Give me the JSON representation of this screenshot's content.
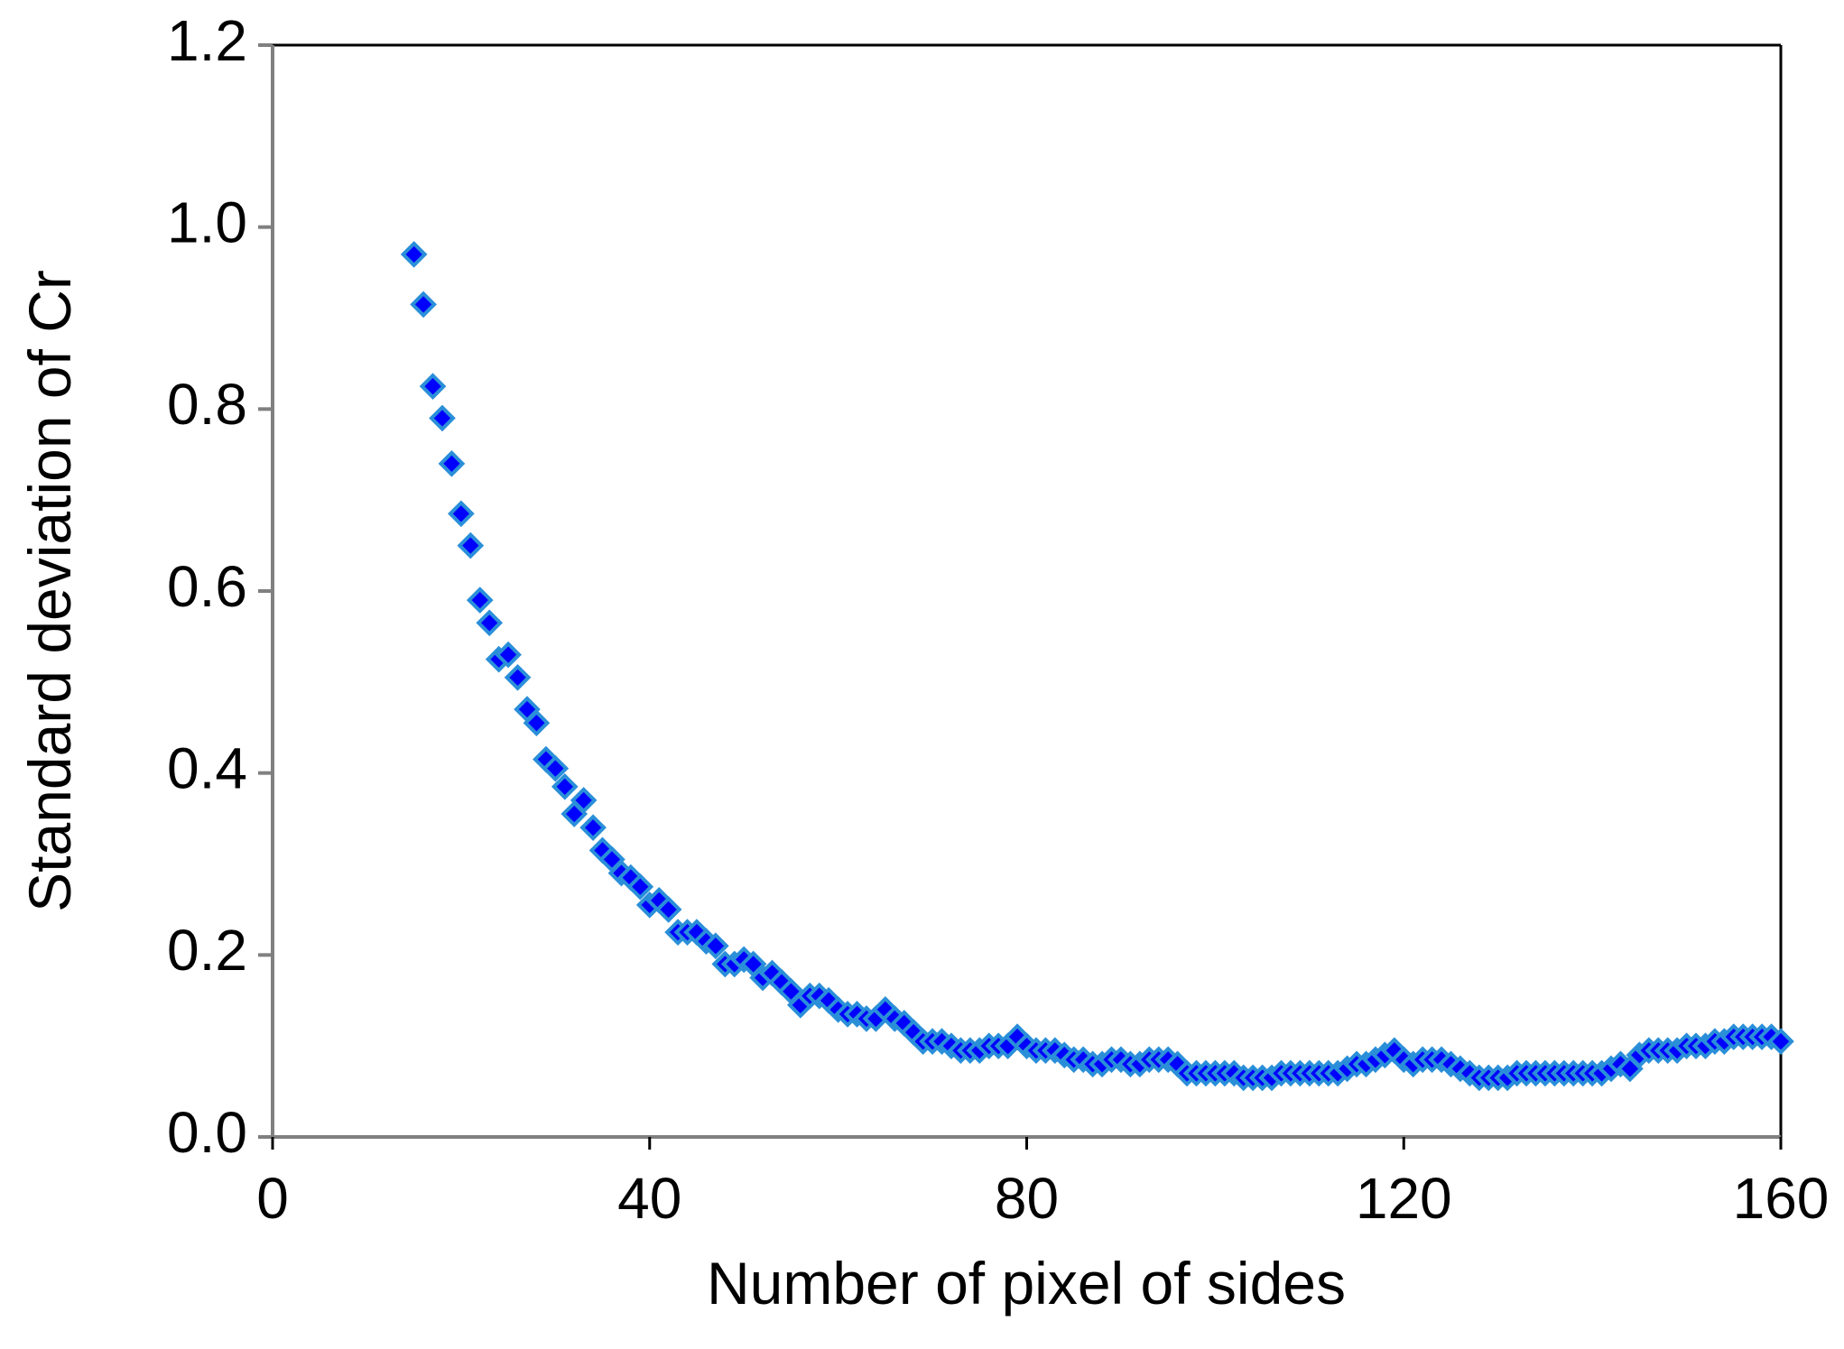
{
  "chart_data": {
    "type": "scatter",
    "x_label": "Number of pixel of sides",
    "y_label": "Standard deviation of Cr",
    "xlim": [
      0,
      160
    ],
    "ylim": [
      0,
      1.2
    ],
    "xticks": [
      0,
      40,
      80,
      120,
      160
    ],
    "yticks": [
      {
        "value": 0,
        "label": "0.0"
      },
      0.2,
      0.4,
      0.6,
      0.8,
      {
        "value": 1,
        "label": "1.0"
      },
      1.2
    ],
    "grid": false,
    "series": [
      {
        "color": "#0000ff",
        "edge_color": "#2a8fd8",
        "marker": "diamond",
        "x": [
          15,
          16,
          17,
          18,
          19,
          20,
          21,
          22,
          23,
          24,
          25,
          26,
          27,
          28,
          29,
          30,
          31,
          32,
          33,
          34,
          35,
          36,
          37,
          38,
          39,
          40,
          41,
          42,
          43,
          44,
          45,
          46,
          47,
          48,
          49,
          50,
          51,
          52,
          53,
          54,
          55,
          56,
          57,
          58,
          59,
          60,
          61,
          62,
          63,
          64,
          65,
          66,
          67,
          68,
          69,
          70,
          71,
          72,
          73,
          74,
          75,
          76,
          77,
          78,
          79,
          80,
          81,
          82,
          83,
          84,
          85,
          86,
          87,
          88,
          89,
          90,
          91,
          92,
          93,
          94,
          95,
          96,
          97,
          98,
          99,
          100,
          101,
          102,
          103,
          104,
          105,
          106,
          107,
          108,
          109,
          110,
          111,
          112,
          113,
          114,
          115,
          116,
          117,
          118,
          119,
          120,
          121,
          122,
          123,
          124,
          125,
          126,
          127,
          128,
          129,
          130,
          131,
          132,
          133,
          134,
          135,
          136,
          137,
          138,
          139,
          140,
          141,
          142,
          143,
          144,
          145,
          146,
          147,
          148,
          149,
          150,
          151,
          152,
          153,
          154,
          155,
          156,
          157,
          158,
          159,
          160
        ],
        "values": [
          0.97,
          0.915,
          0.825,
          0.79,
          0.74,
          0.685,
          0.65,
          0.59,
          0.565,
          0.525,
          0.53,
          0.505,
          0.47,
          0.455,
          0.415,
          0.405,
          0.385,
          0.355,
          0.37,
          0.34,
          0.315,
          0.305,
          0.29,
          0.285,
          0.275,
          0.255,
          0.26,
          0.25,
          0.225,
          0.225,
          0.225,
          0.215,
          0.21,
          0.19,
          0.19,
          0.195,
          0.19,
          0.175,
          0.18,
          0.17,
          0.16,
          0.145,
          0.155,
          0.155,
          0.15,
          0.14,
          0.135,
          0.135,
          0.13,
          0.13,
          0.14,
          0.13,
          0.125,
          0.115,
          0.105,
          0.105,
          0.105,
          0.1,
          0.095,
          0.095,
          0.095,
          0.1,
          0.1,
          0.1,
          0.11,
          0.1,
          0.095,
          0.095,
          0.095,
          0.09,
          0.085,
          0.085,
          0.08,
          0.08,
          0.085,
          0.085,
          0.08,
          0.08,
          0.085,
          0.085,
          0.085,
          0.08,
          0.07,
          0.07,
          0.07,
          0.07,
          0.07,
          0.07,
          0.065,
          0.065,
          0.065,
          0.065,
          0.07,
          0.07,
          0.07,
          0.07,
          0.07,
          0.07,
          0.07,
          0.075,
          0.08,
          0.08,
          0.085,
          0.09,
          0.095,
          0.085,
          0.08,
          0.085,
          0.085,
          0.085,
          0.08,
          0.075,
          0.07,
          0.065,
          0.065,
          0.065,
          0.065,
          0.07,
          0.07,
          0.07,
          0.07,
          0.07,
          0.07,
          0.07,
          0.07,
          0.07,
          0.07,
          0.075,
          0.08,
          0.075,
          0.09,
          0.095,
          0.095,
          0.095,
          0.095,
          0.1,
          0.1,
          0.1,
          0.105,
          0.105,
          0.11,
          0.11,
          0.11,
          0.11,
          0.11,
          0.105
        ]
      }
    ]
  }
}
